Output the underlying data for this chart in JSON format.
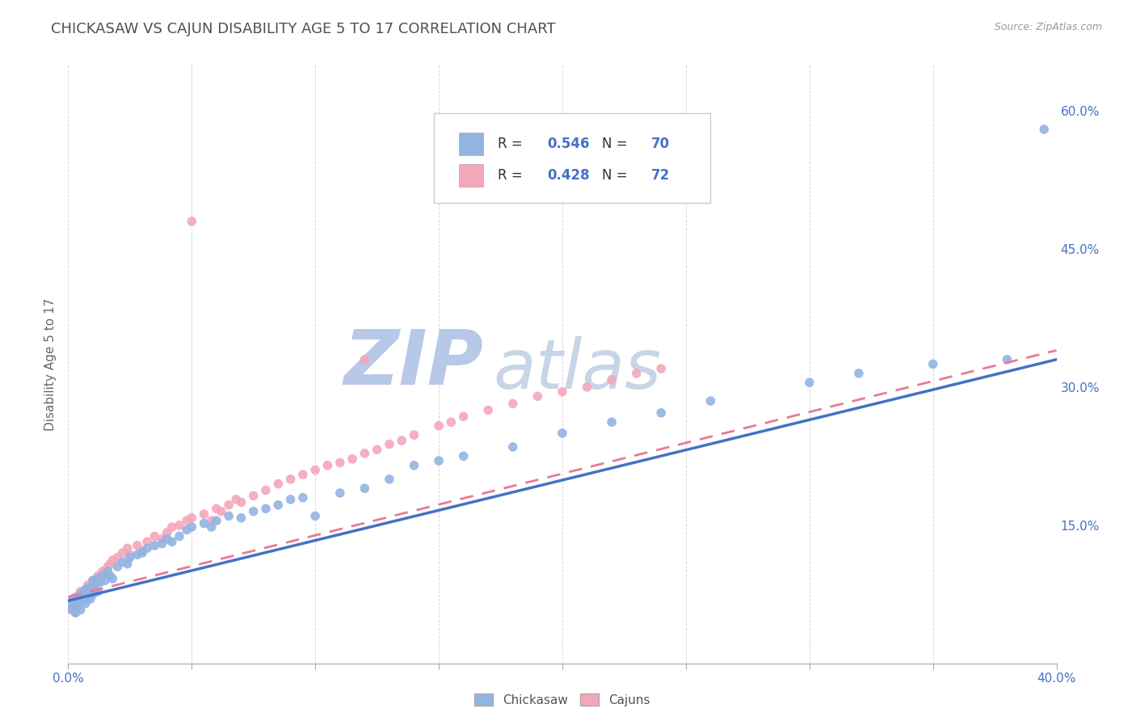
{
  "title": "CHICKASAW VS CAJUN DISABILITY AGE 5 TO 17 CORRELATION CHART",
  "source_text": "Source: ZipAtlas.com",
  "ylabel": "Disability Age 5 to 17",
  "xlim": [
    0.0,
    0.4
  ],
  "ylim": [
    0.0,
    0.65
  ],
  "xticks": [
    0.0,
    0.05,
    0.1,
    0.15,
    0.2,
    0.25,
    0.3,
    0.35,
    0.4
  ],
  "xtick_labels": [
    "0.0%",
    "",
    "",
    "",
    "",
    "",
    "",
    "",
    "40.0%"
  ],
  "ytick_vals": [
    0.15,
    0.3,
    0.45,
    0.6
  ],
  "ytick_labels": [
    "15.0%",
    "30.0%",
    "45.0%",
    "60.0%"
  ],
  "chickasaw_R": 0.546,
  "chickasaw_N": 70,
  "cajun_R": 0.428,
  "cajun_N": 72,
  "chickasaw_color": "#92B4E3",
  "cajun_color": "#F4A7B9",
  "chickasaw_line_color": "#4472C4",
  "cajun_line_color": "#E8799A",
  "background_color": "#FFFFFF",
  "grid_color": "#CCCCCC",
  "title_color": "#505050",
  "watermark_zip": "ZIP",
  "watermark_atlas": "atlas",
  "watermark_zip_color": "#B8C8E8",
  "watermark_atlas_color": "#C8D4E8",
  "legend_label1": "Chickasaw",
  "legend_label2": "Cajuns",
  "chickasaw_x": [
    0.001,
    0.002,
    0.002,
    0.003,
    0.003,
    0.004,
    0.004,
    0.005,
    0.005,
    0.006,
    0.006,
    0.007,
    0.007,
    0.008,
    0.008,
    0.009,
    0.009,
    0.01,
    0.01,
    0.011,
    0.011,
    0.012,
    0.012,
    0.013,
    0.014,
    0.015,
    0.016,
    0.017,
    0.018,
    0.02,
    0.022,
    0.024,
    0.025,
    0.028,
    0.03,
    0.032,
    0.035,
    0.038,
    0.04,
    0.042,
    0.045,
    0.048,
    0.05,
    0.055,
    0.058,
    0.06,
    0.065,
    0.07,
    0.075,
    0.08,
    0.085,
    0.09,
    0.095,
    0.1,
    0.11,
    0.12,
    0.13,
    0.14,
    0.15,
    0.16,
    0.18,
    0.2,
    0.22,
    0.24,
    0.26,
    0.3,
    0.32,
    0.35,
    0.38,
    0.395
  ],
  "chickasaw_y": [
    0.06,
    0.065,
    0.07,
    0.055,
    0.068,
    0.062,
    0.072,
    0.058,
    0.075,
    0.068,
    0.072,
    0.08,
    0.065,
    0.075,
    0.082,
    0.07,
    0.078,
    0.075,
    0.09,
    0.08,
    0.085,
    0.078,
    0.092,
    0.088,
    0.095,
    0.09,
    0.1,
    0.095,
    0.092,
    0.105,
    0.11,
    0.108,
    0.115,
    0.118,
    0.12,
    0.125,
    0.128,
    0.13,
    0.135,
    0.132,
    0.138,
    0.145,
    0.148,
    0.152,
    0.148,
    0.155,
    0.16,
    0.158,
    0.165,
    0.168,
    0.172,
    0.178,
    0.18,
    0.16,
    0.185,
    0.19,
    0.2,
    0.215,
    0.22,
    0.225,
    0.235,
    0.25,
    0.262,
    0.272,
    0.285,
    0.305,
    0.315,
    0.325,
    0.33,
    0.58
  ],
  "cajun_x": [
    0.001,
    0.002,
    0.002,
    0.003,
    0.003,
    0.004,
    0.005,
    0.005,
    0.006,
    0.007,
    0.007,
    0.008,
    0.008,
    0.009,
    0.01,
    0.01,
    0.011,
    0.012,
    0.013,
    0.014,
    0.015,
    0.016,
    0.017,
    0.018,
    0.02,
    0.022,
    0.024,
    0.025,
    0.028,
    0.03,
    0.032,
    0.035,
    0.038,
    0.04,
    0.042,
    0.045,
    0.048,
    0.05,
    0.055,
    0.058,
    0.06,
    0.062,
    0.065,
    0.068,
    0.07,
    0.075,
    0.08,
    0.085,
    0.09,
    0.095,
    0.1,
    0.105,
    0.11,
    0.115,
    0.12,
    0.125,
    0.13,
    0.135,
    0.14,
    0.15,
    0.155,
    0.16,
    0.17,
    0.18,
    0.19,
    0.2,
    0.21,
    0.22,
    0.23,
    0.24,
    0.12,
    0.05
  ],
  "cajun_y": [
    0.058,
    0.062,
    0.068,
    0.055,
    0.072,
    0.065,
    0.07,
    0.078,
    0.072,
    0.075,
    0.08,
    0.07,
    0.085,
    0.078,
    0.082,
    0.09,
    0.088,
    0.095,
    0.092,
    0.1,
    0.098,
    0.105,
    0.108,
    0.112,
    0.115,
    0.12,
    0.125,
    0.118,
    0.128,
    0.122,
    0.132,
    0.138,
    0.135,
    0.142,
    0.148,
    0.15,
    0.155,
    0.158,
    0.162,
    0.155,
    0.168,
    0.165,
    0.172,
    0.178,
    0.175,
    0.182,
    0.188,
    0.195,
    0.2,
    0.205,
    0.21,
    0.215,
    0.218,
    0.222,
    0.228,
    0.232,
    0.238,
    0.242,
    0.248,
    0.258,
    0.262,
    0.268,
    0.275,
    0.282,
    0.29,
    0.295,
    0.3,
    0.308,
    0.315,
    0.32,
    0.33,
    0.48
  ]
}
